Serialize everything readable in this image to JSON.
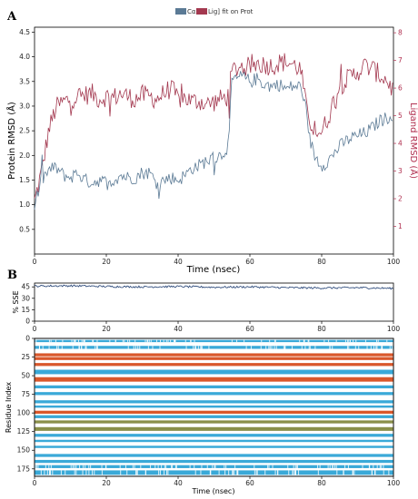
{
  "panel_labels": {
    "a": "A",
    "b": "B"
  },
  "colors": {
    "protein": "#5b7a95",
    "ligand": "#a3384f",
    "sse": "#1f3e72",
    "helix": "#d9572b",
    "strand": "#3aa9d8",
    "other_band": "#8a8f4a"
  },
  "chart_data": [
    {
      "type": "line",
      "panel": "A",
      "legend": [
        "Cα",
        "Lig] fit on Prot"
      ],
      "legend_placement": "top-center",
      "xlabel": "Time (nsec)",
      "ylabel": "Protein RMSD (Å)",
      "ylabel_right": "Ligand RMSD (Å)",
      "xlim": [
        0,
        100
      ],
      "ylim": [
        0,
        4.6
      ],
      "ylim_right": [
        0,
        8.2
      ],
      "xticks": [
        "0",
        "20",
        "40",
        "60",
        "80",
        "100"
      ],
      "yticks": [
        "0.5",
        "1.0",
        "1.5",
        "2.0",
        "2.5",
        "3.0",
        "3.5",
        "4.0",
        "4.5"
      ],
      "yticks_right": [
        "1",
        "2",
        "3",
        "4",
        "5",
        "6",
        "7",
        "8"
      ],
      "x": [
        0,
        2,
        4,
        6,
        8,
        10,
        12,
        14,
        16,
        18,
        20,
        22,
        24,
        26,
        28,
        30,
        32,
        34,
        36,
        38,
        40,
        42,
        44,
        46,
        48,
        50,
        52,
        54,
        55,
        56,
        58,
        60,
        62,
        64,
        66,
        68,
        70,
        72,
        74,
        75,
        76,
        78,
        80,
        82,
        84,
        86,
        88,
        90,
        92,
        94,
        96,
        98,
        100
      ],
      "series": [
        {
          "name": "Cα",
          "axis": "left",
          "values": [
            1.0,
            1.5,
            1.7,
            1.75,
            1.6,
            1.55,
            1.65,
            1.5,
            1.45,
            1.5,
            1.45,
            1.5,
            1.6,
            1.55,
            1.55,
            1.65,
            1.65,
            1.45,
            1.5,
            1.55,
            1.5,
            1.6,
            1.75,
            1.8,
            1.9,
            1.95,
            2.0,
            2.2,
            3.5,
            3.55,
            3.6,
            3.5,
            3.55,
            3.45,
            3.4,
            3.45,
            3.35,
            3.4,
            3.4,
            3.2,
            2.5,
            2.0,
            1.8,
            1.9,
            2.1,
            2.25,
            2.35,
            2.4,
            2.45,
            2.55,
            2.7,
            2.75,
            2.85
          ]
        },
        {
          "name": "Lig] fit on Prot",
          "axis": "right",
          "values": [
            1.9,
            3.0,
            4.5,
            5.3,
            5.5,
            5.6,
            5.7,
            5.75,
            5.8,
            5.6,
            5.7,
            5.65,
            5.8,
            5.7,
            5.6,
            5.75,
            5.7,
            5.6,
            5.8,
            6.0,
            5.6,
            5.65,
            5.5,
            5.55,
            5.4,
            5.5,
            5.6,
            5.7,
            6.6,
            6.7,
            6.8,
            6.75,
            6.9,
            6.85,
            6.8,
            6.9,
            6.95,
            6.85,
            6.7,
            6.0,
            5.0,
            4.5,
            4.4,
            5.0,
            5.8,
            6.2,
            6.4,
            6.6,
            6.8,
            6.7,
            6.5,
            6.3,
            5.9
          ]
        }
      ]
    },
    {
      "type": "line",
      "panel": "B-top",
      "ylabel": "% SSE",
      "xlim": [
        0,
        100
      ],
      "ylim": [
        0,
        50
      ],
      "xticks": [
        "0",
        "20",
        "40",
        "60",
        "80",
        "100"
      ],
      "yticks": [
        "0",
        "15",
        "30",
        "45"
      ],
      "x": [
        0,
        10,
        20,
        30,
        40,
        50,
        60,
        70,
        80,
        90,
        100
      ],
      "series": [
        {
          "name": "",
          "values": [
            46,
            46.5,
            45.5,
            45,
            45.5,
            44.5,
            45,
            44,
            43.5,
            44,
            43
          ]
        }
      ]
    },
    {
      "type": "heatmap",
      "panel": "B-bottom",
      "xlabel": "Time (nsec)",
      "ylabel": "Residue Index",
      "xlim": [
        0,
        100
      ],
      "ylim": [
        0,
        185
      ],
      "xticks": [
        "0",
        "20",
        "40",
        "60",
        "80",
        "100"
      ],
      "yticks": [
        "0",
        "25",
        "50",
        "75",
        "100",
        "125",
        "150",
        "175"
      ],
      "bands": [
        {
          "start": 2,
          "end": 5,
          "kind": "strand",
          "speckle": true
        },
        {
          "start": 10,
          "end": 14,
          "kind": "strand",
          "speckle": true
        },
        {
          "start": 20,
          "end": 24,
          "kind": "helix",
          "speckle": false
        },
        {
          "start": 25,
          "end": 29,
          "kind": "helix",
          "speckle": false
        },
        {
          "start": 33,
          "end": 37,
          "kind": "helix",
          "speckle": false
        },
        {
          "start": 42,
          "end": 48,
          "kind": "strand",
          "speckle": false
        },
        {
          "start": 52,
          "end": 58,
          "kind": "helix",
          "speckle": false
        },
        {
          "start": 63,
          "end": 67,
          "kind": "strand",
          "speckle": false
        },
        {
          "start": 72,
          "end": 76,
          "kind": "strand",
          "speckle": false
        },
        {
          "start": 83,
          "end": 87,
          "kind": "strand",
          "speckle": false
        },
        {
          "start": 90,
          "end": 93,
          "kind": "strand",
          "speckle": false
        },
        {
          "start": 97,
          "end": 101,
          "kind": "helix",
          "speckle": false
        },
        {
          "start": 103,
          "end": 107,
          "kind": "strand",
          "speckle": false
        },
        {
          "start": 110,
          "end": 114,
          "kind": "other_band",
          "speckle": false
        },
        {
          "start": 119,
          "end": 124,
          "kind": "other_band",
          "speckle": false
        },
        {
          "start": 128,
          "end": 132,
          "kind": "strand",
          "speckle": false
        },
        {
          "start": 136,
          "end": 139,
          "kind": "strand",
          "speckle": false
        },
        {
          "start": 144,
          "end": 147,
          "kind": "strand",
          "speckle": false
        },
        {
          "start": 155,
          "end": 159,
          "kind": "strand",
          "speckle": false
        },
        {
          "start": 163,
          "end": 167,
          "kind": "strand",
          "speckle": false
        },
        {
          "start": 170,
          "end": 174,
          "kind": "strand",
          "speckle": true
        },
        {
          "start": 177,
          "end": 183,
          "kind": "strand",
          "speckle": true
        }
      ]
    }
  ]
}
